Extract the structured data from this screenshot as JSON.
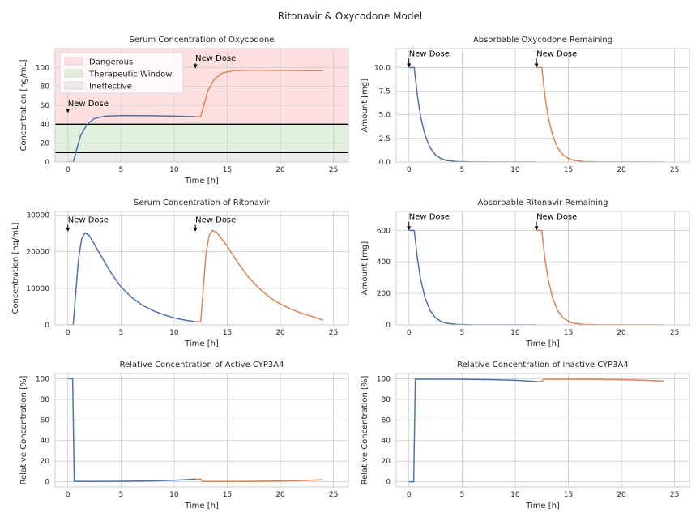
{
  "figure": {
    "suptitle": "Ritonavir & Oxycodone Model"
  },
  "colors": {
    "series1": "#4c72b0",
    "series2": "#dd8452",
    "dangerous": "#ffe0e0",
    "therapeutic": "#e2f0de",
    "ineffective": "#ececec",
    "threshold_line": "#000000",
    "grid": "#cccccc",
    "axes_edge": "#cccccc"
  },
  "chart_data": [
    {
      "id": "oxy-serum",
      "type": "line",
      "title": "Serum Concentration of Oxycodone",
      "xlabel": "Time [h]",
      "ylabel": "Concentration [ng/mL]",
      "xlim": [
        -1.2,
        26.4
      ],
      "ylim": [
        0,
        120
      ],
      "xticks": [
        0,
        5,
        10,
        15,
        20,
        25
      ],
      "yticks": [
        0,
        20,
        40,
        60,
        80,
        100
      ],
      "grid": true,
      "bands": [
        {
          "name": "Dangerous",
          "from": 40,
          "to": 120,
          "color": "#ffe0e0"
        },
        {
          "name": "Therapeutic Window",
          "from": 10,
          "to": 40,
          "color": "#e2f0de"
        },
        {
          "name": "Ineffective",
          "from": 0,
          "to": 10,
          "color": "#ececec"
        }
      ],
      "hlines": [
        10,
        40
      ],
      "legend": {
        "position": "top-left",
        "entries": [
          "Dangerous",
          "Therapeutic Window",
          "Ineffective"
        ]
      },
      "annotations": [
        {
          "text": "New Dose",
          "x": 0,
          "y": 52,
          "text_y": 59
        },
        {
          "text": "New Dose",
          "x": 12,
          "y": 99,
          "text_y": 107
        }
      ],
      "series": [
        {
          "color": "#4c72b0",
          "points": [
            [
              0,
              0
            ],
            [
              0.5,
              0
            ],
            [
              0.8,
              12
            ],
            [
              1.2,
              28
            ],
            [
              1.8,
              40
            ],
            [
              2.5,
              46
            ],
            [
              3.5,
              48.5
            ],
            [
              5,
              49.2
            ],
            [
              8,
              49
            ],
            [
              10,
              48.5
            ],
            [
              12,
              48
            ]
          ]
        },
        {
          "color": "#dd8452",
          "points": [
            [
              12,
              48
            ],
            [
              12.5,
              48
            ],
            [
              12.8,
              60
            ],
            [
              13.2,
              76
            ],
            [
              13.8,
              88
            ],
            [
              14.5,
              94
            ],
            [
              15.5,
              96.5
            ],
            [
              17,
              97.2
            ],
            [
              20,
              97
            ],
            [
              22,
              96.8
            ],
            [
              24,
              96.5
            ]
          ]
        }
      ]
    },
    {
      "id": "oxy-absorbable",
      "type": "line",
      "title": "Absorbable Oxycodone Remaining",
      "xlabel": "",
      "ylabel": "Amount [mg]",
      "xlim": [
        -1.2,
        26.4
      ],
      "ylim": [
        0,
        12
      ],
      "xticks": [
        0,
        5,
        10,
        15,
        20,
        25
      ],
      "yticks": [
        0.0,
        2.5,
        5.0,
        7.5,
        10.0
      ],
      "ytick_labels": [
        "0.0",
        "2.5",
        "5.0",
        "7.5",
        "10.0"
      ],
      "grid": true,
      "annotations": [
        {
          "text": "New Dose",
          "x": 0,
          "y": 10,
          "text_y": 11.2
        },
        {
          "text": "New Dose",
          "x": 12,
          "y": 10,
          "text_y": 11.2
        }
      ],
      "series": [
        {
          "color": "#4c72b0",
          "points": [
            [
              0,
              10
            ],
            [
              0.5,
              10
            ],
            [
              0.8,
              7
            ],
            [
              1.1,
              4.8
            ],
            [
              1.5,
              2.9
            ],
            [
              2,
              1.5
            ],
            [
              2.5,
              0.75
            ],
            [
              3,
              0.38
            ],
            [
              3.5,
              0.18
            ],
            [
              4.5,
              0.05
            ],
            [
              6,
              0.01
            ],
            [
              12,
              0
            ]
          ]
        },
        {
          "color": "#dd8452",
          "points": [
            [
              12,
              10
            ],
            [
              12.5,
              10
            ],
            [
              12.8,
              7
            ],
            [
              13.1,
              4.8
            ],
            [
              13.5,
              2.9
            ],
            [
              14,
              1.5
            ],
            [
              14.5,
              0.75
            ],
            [
              15,
              0.38
            ],
            [
              15.5,
              0.18
            ],
            [
              16.5,
              0.05
            ],
            [
              18,
              0.01
            ],
            [
              24,
              0
            ]
          ]
        }
      ]
    },
    {
      "id": "rit-serum",
      "type": "line",
      "title": "Serum Concentration of Ritonavir",
      "xlabel": "Time [h]",
      "ylabel": "Concentration [ng/mL]",
      "xlim": [
        -1.2,
        26.4
      ],
      "ylim": [
        0,
        31000
      ],
      "xticks": [
        0,
        5,
        10,
        15,
        20,
        25
      ],
      "yticks": [
        0,
        10000,
        20000,
        30000
      ],
      "grid": true,
      "annotations": [
        {
          "text": "New Dose",
          "x": 0,
          "y": 25500,
          "text_y": 28000
        },
        {
          "text": "New Dose",
          "x": 12,
          "y": 25500,
          "text_y": 28000
        }
      ],
      "series": [
        {
          "color": "#4c72b0",
          "points": [
            [
              0,
              0
            ],
            [
              0.5,
              0
            ],
            [
              0.75,
              9000
            ],
            [
              1,
              18000
            ],
            [
              1.3,
              23500
            ],
            [
              1.6,
              25100
            ],
            [
              2,
              24500
            ],
            [
              3,
              19500
            ],
            [
              4,
              14500
            ],
            [
              5,
              10400
            ],
            [
              6,
              7500
            ],
            [
              7,
              5400
            ],
            [
              8,
              3900
            ],
            [
              9,
              2800
            ],
            [
              10,
              1900
            ],
            [
              11,
              1300
            ],
            [
              12,
              900
            ]
          ]
        },
        {
          "color": "#dd8452",
          "points": [
            [
              12,
              900
            ],
            [
              12.5,
              900
            ],
            [
              12.75,
              10000
            ],
            [
              13,
              19500
            ],
            [
              13.3,
              24500
            ],
            [
              13.6,
              25800
            ],
            [
              14,
              25300
            ],
            [
              15,
              21500
            ],
            [
              16,
              17000
            ],
            [
              17,
              13000
            ],
            [
              18,
              10000
            ],
            [
              19,
              7500
            ],
            [
              20,
              5700
            ],
            [
              21,
              4300
            ],
            [
              22,
              3200
            ],
            [
              23,
              2300
            ],
            [
              24,
              1300
            ]
          ]
        }
      ]
    },
    {
      "id": "rit-absorbable",
      "type": "line",
      "title": "Absorbable Ritonavir Remaining",
      "xlabel": "Time [h]",
      "ylabel": "Amount [mg]",
      "xlim": [
        -1.2,
        26.4
      ],
      "ylim": [
        0,
        720
      ],
      "xticks": [
        0,
        5,
        10,
        15,
        20,
        25
      ],
      "yticks": [
        0,
        200,
        400,
        600
      ],
      "grid": true,
      "annotations": [
        {
          "text": "New Dose",
          "x": 0,
          "y": 600,
          "text_y": 670
        },
        {
          "text": "New Dose",
          "x": 12,
          "y": 600,
          "text_y": 670
        }
      ],
      "series": [
        {
          "color": "#4c72b0",
          "points": [
            [
              0,
              600
            ],
            [
              0.5,
              600
            ],
            [
              0.8,
              420
            ],
            [
              1.1,
              290
            ],
            [
              1.5,
              175
            ],
            [
              2,
              90
            ],
            [
              2.5,
              45
            ],
            [
              3,
              23
            ],
            [
              3.5,
              11
            ],
            [
              4.5,
              3
            ],
            [
              6,
              0.5
            ],
            [
              12,
              0
            ]
          ]
        },
        {
          "color": "#dd8452",
          "points": [
            [
              12,
              600
            ],
            [
              12.5,
              600
            ],
            [
              12.8,
              420
            ],
            [
              13.1,
              290
            ],
            [
              13.5,
              175
            ],
            [
              14,
              90
            ],
            [
              14.5,
              45
            ],
            [
              15,
              23
            ],
            [
              15.5,
              11
            ],
            [
              16.5,
              3
            ],
            [
              18,
              0.5
            ],
            [
              24,
              0
            ]
          ]
        }
      ]
    },
    {
      "id": "cyp-active",
      "type": "line",
      "title": "Relative Concentration of Active CYP3A4",
      "xlabel": "Time [h]",
      "ylabel": "Relative Concentration [%]",
      "xlim": [
        -1.2,
        26.4
      ],
      "ylim": [
        -5,
        105
      ],
      "xticks": [
        0,
        5,
        10,
        15,
        20,
        25
      ],
      "yticks": [
        0,
        20,
        40,
        60,
        80,
        100
      ],
      "grid": true,
      "series": [
        {
          "color": "#4c72b0",
          "points": [
            [
              0,
              100
            ],
            [
              0.45,
              100
            ],
            [
              0.6,
              0.5
            ],
            [
              2,
              0.3
            ],
            [
              4,
              0.4
            ],
            [
              6,
              0.6
            ],
            [
              8,
              0.9
            ],
            [
              10,
              1.5
            ],
            [
              11,
              2
            ],
            [
              12,
              2.6
            ]
          ]
        },
        {
          "color": "#dd8452",
          "points": [
            [
              12,
              2.6
            ],
            [
              12.5,
              2.6
            ],
            [
              12.7,
              0.3
            ],
            [
              15,
              0.3
            ],
            [
              18,
              0.5
            ],
            [
              20,
              0.8
            ],
            [
              22,
              1.2
            ],
            [
              24,
              2
            ]
          ]
        }
      ]
    },
    {
      "id": "cyp-inactive",
      "type": "line",
      "title": "Relative Concentration of inactive CYP3A4",
      "xlabel": "Time [h]",
      "ylabel": "Relative Concentration [%]",
      "xlim": [
        -1.2,
        26.4
      ],
      "ylim": [
        -5,
        105
      ],
      "xticks": [
        0,
        5,
        10,
        15,
        20,
        25
      ],
      "yticks": [
        0,
        20,
        40,
        60,
        80,
        100
      ],
      "grid": true,
      "series": [
        {
          "color": "#4c72b0",
          "points": [
            [
              0,
              0
            ],
            [
              0.45,
              0
            ],
            [
              0.6,
              99.5
            ],
            [
              2,
              99.5
            ],
            [
              4,
              99.5
            ],
            [
              6,
              99.3
            ],
            [
              8,
              99
            ],
            [
              10,
              98.4
            ],
            [
              11,
              97.8
            ],
            [
              12,
              97.2
            ]
          ]
        },
        {
          "color": "#dd8452",
          "points": [
            [
              12,
              97.2
            ],
            [
              12.5,
              97.2
            ],
            [
              12.7,
              99.5
            ],
            [
              15,
              99.5
            ],
            [
              18,
              99.3
            ],
            [
              20,
              99
            ],
            [
              22,
              98.5
            ],
            [
              24,
              97.6
            ]
          ]
        }
      ]
    }
  ]
}
